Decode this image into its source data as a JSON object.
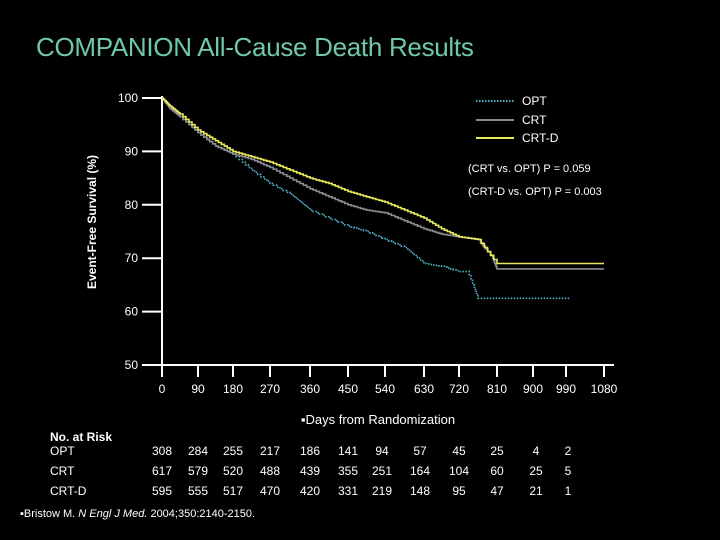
{
  "page": {
    "title": "COMPANION All-Cause Death Results",
    "citation_prefix": "▪Bristow M. ",
    "citation_journal": "N Engl J Med.",
    "citation_suffix": " 2004;350:2140-2150.",
    "colors": {
      "background": "#000000",
      "title": "#6fc8a8"
    }
  },
  "chart_data": {
    "type": "line",
    "ylabel": "Event-Free Survival (%)",
    "xlabel": "▪Days from Randomization",
    "xlim": [
      0,
      1080
    ],
    "ylim": [
      50,
      100
    ],
    "xticks": [
      0,
      90,
      180,
      270,
      360,
      450,
      540,
      630,
      720,
      810,
      900,
      990,
      1080
    ],
    "yticks": [
      50,
      60,
      70,
      80,
      90,
      100
    ],
    "legend_position": "top-right",
    "annotations": [
      "(CRT vs. OPT) P = 0.059",
      "(CRT-D vs. OPT) P = 0.003"
    ],
    "series": [
      {
        "name": "OPT",
        "color": "#4fb3c8",
        "style": "dotted",
        "x": [
          0,
          20,
          45,
          90,
          135,
          180,
          225,
          270,
          315,
          360,
          405,
          450,
          495,
          540,
          585,
          630,
          675,
          720,
          740,
          765,
          810,
          900,
          990,
          1000
        ],
        "y": [
          100,
          98.5,
          96.5,
          93.5,
          91,
          89.5,
          86.5,
          84,
          82,
          79,
          77.5,
          76,
          75,
          73.5,
          72,
          69,
          68.5,
          67.5,
          67.5,
          62.5,
          62.5,
          62.5,
          62.5,
          62.5
        ]
      },
      {
        "name": "CRT",
        "color": "#8a8a92",
        "style": "solid",
        "x": [
          0,
          20,
          45,
          90,
          135,
          180,
          225,
          270,
          315,
          360,
          405,
          450,
          495,
          540,
          585,
          630,
          675,
          720,
          765,
          800,
          810,
          900,
          990,
          1080
        ],
        "y": [
          100,
          98,
          96.5,
          93.5,
          91,
          89.5,
          88.5,
          87,
          85,
          83,
          81.5,
          80,
          79,
          78.5,
          77,
          75.5,
          74.5,
          74,
          73.5,
          70,
          68,
          68,
          68,
          68
        ]
      },
      {
        "name": "CRT-D",
        "color": "#e8e85a",
        "style": "solid",
        "x": [
          0,
          20,
          45,
          90,
          135,
          180,
          225,
          270,
          315,
          360,
          405,
          450,
          495,
          540,
          585,
          630,
          675,
          720,
          765,
          810,
          900,
          990,
          1080
        ],
        "y": [
          100,
          98.5,
          97,
          94,
          92,
          90,
          89,
          88,
          86.5,
          85,
          84,
          82.5,
          81.5,
          80.5,
          79,
          77.5,
          75.5,
          74,
          73.5,
          69,
          69,
          69,
          69
        ]
      }
    ],
    "risk_table": {
      "header": "No. at Risk",
      "rows": [
        {
          "label": "OPT",
          "values": [
            "308",
            "284",
            "255",
            "217",
            "186",
            "141",
            "94",
            "57",
            "45",
            "25",
            "4",
            "2"
          ]
        },
        {
          "label": "CRT",
          "values": [
            "617",
            "579",
            "520",
            "488",
            "439",
            "355",
            "251",
            "164",
            "104",
            "60",
            "25",
            "5"
          ]
        },
        {
          "label": "CRT-D",
          "values": [
            "595",
            "555",
            "517",
            "470",
            "420",
            "331",
            "219",
            "148",
            "95",
            "47",
            "21",
            "1"
          ]
        }
      ]
    }
  }
}
